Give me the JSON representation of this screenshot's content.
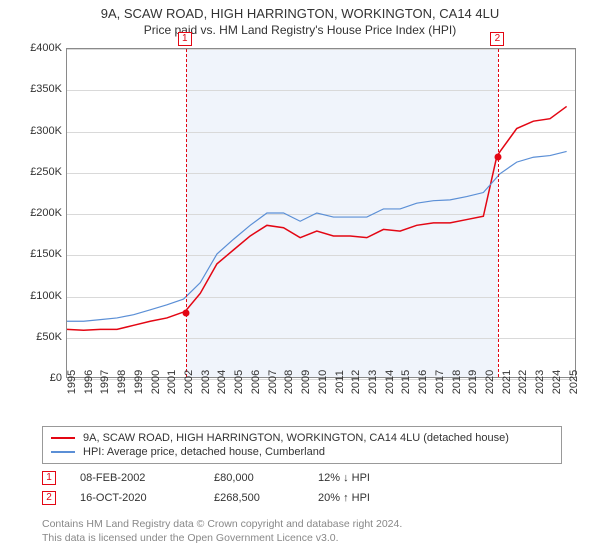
{
  "title": "9A, SCAW ROAD, HIGH HARRINGTON, WORKINGTON, CA14 4LU",
  "subtitle": "Price paid vs. HM Land Registry's House Price Index (HPI)",
  "chart": {
    "type": "line",
    "background_color": "#ffffff",
    "shaded_band_color": "#f0f4fb",
    "plot_border_color": "#8a8a8a",
    "grid_color": "#d9d9d9",
    "x_years": [
      1995,
      1996,
      1997,
      1998,
      1999,
      2000,
      2001,
      2002,
      2003,
      2004,
      2005,
      2006,
      2007,
      2008,
      2009,
      2010,
      2011,
      2012,
      2013,
      2014,
      2015,
      2016,
      2017,
      2018,
      2019,
      2020,
      2021,
      2022,
      2023,
      2024,
      2025
    ],
    "y_ticks": [
      0,
      50000,
      100000,
      150000,
      200000,
      250000,
      300000,
      350000,
      400000
    ],
    "y_tick_labels": [
      "£0",
      "£50K",
      "£100K",
      "£150K",
      "£200K",
      "£250K",
      "£300K",
      "£350K",
      "£400K"
    ],
    "ylim": [
      0,
      400000
    ],
    "xlim": [
      1995,
      2025.5
    ],
    "shaded_from_year": 2002.1,
    "shaded_to_year": 2020.8,
    "series": [
      {
        "name": "property",
        "label": "9A, SCAW ROAD, HIGH HARRINGTON, WORKINGTON, CA14 4LU (detached house)",
        "color": "#e30613",
        "line_width": 1.5,
        "points": [
          [
            1995,
            58000
          ],
          [
            1996,
            57000
          ],
          [
            1997,
            58000
          ],
          [
            1998,
            58000
          ],
          [
            1999,
            63000
          ],
          [
            2000,
            68000
          ],
          [
            2001,
            72000
          ],
          [
            2002.1,
            80000
          ],
          [
            2003,
            102000
          ],
          [
            2004,
            138000
          ],
          [
            2005,
            155000
          ],
          [
            2006,
            172000
          ],
          [
            2007,
            185000
          ],
          [
            2008,
            182000
          ],
          [
            2009,
            170000
          ],
          [
            2010,
            178000
          ],
          [
            2011,
            172000
          ],
          [
            2012,
            172000
          ],
          [
            2013,
            170000
          ],
          [
            2014,
            180000
          ],
          [
            2015,
            178000
          ],
          [
            2016,
            185000
          ],
          [
            2017,
            188000
          ],
          [
            2018,
            188000
          ],
          [
            2019,
            192000
          ],
          [
            2020,
            196000
          ],
          [
            2020.8,
            268500
          ],
          [
            2021,
            275000
          ],
          [
            2022,
            303000
          ],
          [
            2023,
            312000
          ],
          [
            2024,
            315000
          ],
          [
            2025,
            330000
          ]
        ]
      },
      {
        "name": "hpi",
        "label": "HPI: Average price, detached house, Cumberland",
        "color": "#5b8fd6",
        "line_width": 1.2,
        "points": [
          [
            1995,
            68000
          ],
          [
            1996,
            68000
          ],
          [
            1997,
            70000
          ],
          [
            1998,
            72000
          ],
          [
            1999,
            76000
          ],
          [
            2000,
            82000
          ],
          [
            2001,
            88000
          ],
          [
            2002,
            95000
          ],
          [
            2003,
            115000
          ],
          [
            2004,
            150000
          ],
          [
            2005,
            168000
          ],
          [
            2006,
            185000
          ],
          [
            2007,
            200000
          ],
          [
            2008,
            200000
          ],
          [
            2009,
            190000
          ],
          [
            2010,
            200000
          ],
          [
            2011,
            195000
          ],
          [
            2012,
            195000
          ],
          [
            2013,
            195000
          ],
          [
            2014,
            205000
          ],
          [
            2015,
            205000
          ],
          [
            2016,
            212000
          ],
          [
            2017,
            215000
          ],
          [
            2018,
            216000
          ],
          [
            2019,
            220000
          ],
          [
            2020,
            225000
          ],
          [
            2021,
            248000
          ],
          [
            2022,
            262000
          ],
          [
            2023,
            268000
          ],
          [
            2024,
            270000
          ],
          [
            2025,
            275000
          ]
        ]
      }
    ],
    "vlines": [
      {
        "year": 2002.1,
        "color": "#e30613"
      },
      {
        "year": 2020.8,
        "color": "#e30613"
      }
    ],
    "markers": [
      {
        "n": "1",
        "year": 2002.1,
        "box_y": -16,
        "dot_value": 80000
      },
      {
        "n": "2",
        "year": 2020.8,
        "box_y": -16,
        "dot_value": 268500
      }
    ]
  },
  "legend": {
    "rows": [
      {
        "color": "#e30613",
        "label_path": "chart.series.0.label"
      },
      {
        "color": "#5b8fd6",
        "label_path": "chart.series.1.label"
      }
    ]
  },
  "events": [
    {
      "n": "1",
      "date": "08-FEB-2002",
      "price": "£80,000",
      "delta": "12% ↓ HPI"
    },
    {
      "n": "2",
      "date": "16-OCT-2020",
      "price": "£268,500",
      "delta": "20% ↑ HPI"
    }
  ],
  "footer_line1": "Contains HM Land Registry data © Crown copyright and database right 2024.",
  "footer_line2": "This data is licensed under the Open Government Licence v3.0."
}
